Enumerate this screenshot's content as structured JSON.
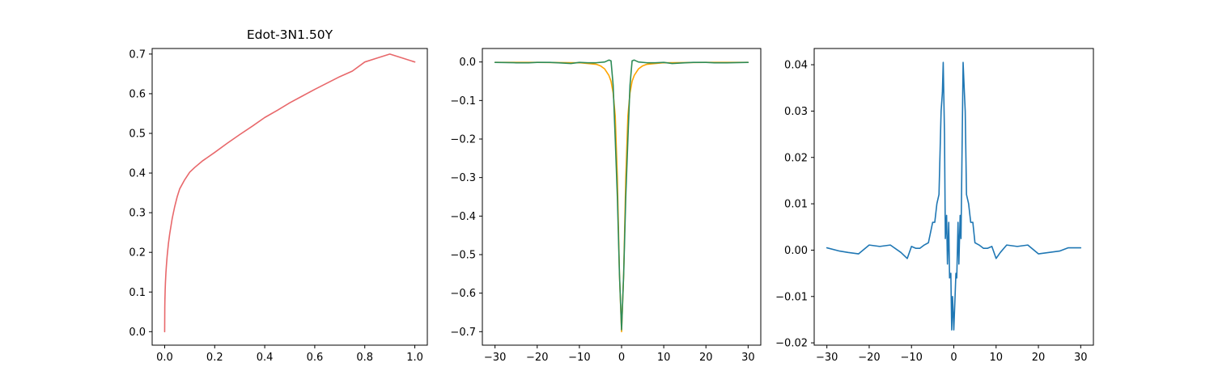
{
  "chart_data": [
    {
      "type": "line",
      "title": "Edot-3N1.50Y",
      "xlabel": "",
      "ylabel": "",
      "xlim": [
        -0.05,
        1.05
      ],
      "ylim": [
        -0.034,
        0.714
      ],
      "xticks": [
        0.0,
        0.2,
        0.4,
        0.6,
        0.8,
        1.0
      ],
      "xtick_labels": [
        "0.0",
        "0.2",
        "0.4",
        "0.6",
        "0.8",
        "1.0"
      ],
      "yticks": [
        0.0,
        0.1,
        0.2,
        0.3,
        0.4,
        0.5,
        0.6,
        0.7
      ],
      "ytick_labels": [
        "0.0",
        "0.1",
        "0.2",
        "0.3",
        "0.4",
        "0.5",
        "0.6",
        "0.7"
      ],
      "grid": false,
      "series": [
        {
          "color": "#e8686b",
          "x": [
            0,
            0.0005,
            0.001,
            0.002,
            0.003,
            0.005,
            0.007,
            0.01,
            0.015,
            0.02,
            0.03,
            0.04,
            0.05,
            0.06,
            0.08,
            0.1,
            0.12,
            0.15,
            0.2,
            0.25,
            0.3,
            0.35,
            0.4,
            0.45,
            0.5,
            0.55,
            0.6,
            0.65,
            0.7,
            0.75,
            0.8,
            0.85,
            0.9,
            0.95,
            1.0
          ],
          "y": [
            0,
            0.061,
            0.08,
            0.104,
            0.122,
            0.148,
            0.167,
            0.191,
            0.222,
            0.246,
            0.285,
            0.315,
            0.34,
            0.36,
            0.383,
            0.402,
            0.414,
            0.43,
            0.452,
            0.475,
            0.497,
            0.518,
            0.54,
            0.558,
            0.577,
            0.594,
            0.611,
            0.627,
            0.643,
            0.657,
            0.68,
            0.69,
            0.7,
            0.69,
            0.68
          ]
        }
      ]
    },
    {
      "type": "line",
      "title": "",
      "xlabel": "",
      "ylabel": "",
      "xlim": [
        -33,
        33
      ],
      "ylim": [
        -0.735,
        0.035
      ],
      "xticks": [
        -30,
        -20,
        -10,
        0,
        10,
        20,
        30
      ],
      "xtick_labels": [
        "−30",
        "−20",
        "−10",
        "0",
        "10",
        "20",
        "30"
      ],
      "yticks": [
        0.0,
        -0.1,
        -0.2,
        -0.3,
        -0.4,
        -0.5,
        -0.6,
        -0.7
      ],
      "ytick_labels": [
        "0.0",
        "−0.1",
        "−0.2",
        "−0.3",
        "−0.4",
        "−0.5",
        "−0.6",
        "−0.7"
      ],
      "grid": false,
      "series": [
        {
          "color": "#ffa500",
          "x": [
            -30,
            -20,
            -10,
            -6,
            -5,
            -4,
            -3,
            -2.5,
            -2,
            -1.5,
            -1,
            -0.5,
            0,
            0.5,
            1,
            1.5,
            2,
            2.5,
            3,
            4,
            5,
            6,
            10,
            20,
            30
          ],
          "y": [
            -0.001,
            -0.001,
            -0.002,
            -0.006,
            -0.01,
            -0.018,
            -0.035,
            -0.05,
            -0.08,
            -0.14,
            -0.3,
            -0.55,
            -0.7,
            -0.55,
            -0.3,
            -0.14,
            -0.08,
            -0.05,
            -0.035,
            -0.018,
            -0.01,
            -0.006,
            -0.002,
            -0.001,
            -0.001
          ]
        },
        {
          "color": "#2e8b57",
          "x": [
            -30,
            -25,
            -22,
            -20,
            -17,
            -15,
            -12,
            -10,
            -8,
            -6,
            -4,
            -3,
            -2.5,
            -2,
            -1.5,
            -1,
            -0.5,
            0,
            0.5,
            1,
            1.5,
            2,
            2.5,
            3,
            4,
            6,
            8,
            10,
            12,
            15,
            17,
            20,
            22,
            25,
            30
          ],
          "y": [
            -0.001,
            -0.002,
            -0.002,
            -0.001,
            -0.001,
            -0.002,
            -0.004,
            -0.001,
            -0.002,
            -0.002,
            0.0,
            0.005,
            0.003,
            -0.06,
            -0.2,
            -0.35,
            -0.55,
            -0.695,
            -0.55,
            -0.35,
            -0.2,
            -0.06,
            0.003,
            0.005,
            0.0,
            -0.002,
            -0.002,
            -0.001,
            -0.004,
            -0.002,
            -0.001,
            -0.001,
            -0.002,
            -0.002,
            -0.001
          ]
        }
      ]
    },
    {
      "type": "line",
      "title": "",
      "xlabel": "",
      "ylabel": "",
      "xlim": [
        -33,
        33
      ],
      "ylim": [
        -0.0205,
        0.0435
      ],
      "xticks": [
        -30,
        -20,
        -10,
        0,
        10,
        20,
        30
      ],
      "xtick_labels": [
        "−30",
        "−20",
        "−10",
        "0",
        "10",
        "20",
        "30"
      ],
      "yticks": [
        0.04,
        0.03,
        0.02,
        0.01,
        0.0,
        -0.01,
        -0.02
      ],
      "ytick_labels": [
        "0.04",
        "0.03",
        "0.02",
        "0.01",
        "0.00",
        "−0.01",
        "−0.02"
      ],
      "grid": false,
      "series": [
        {
          "color": "#1f77b4",
          "x": [
            -30,
            -27,
            -25,
            -22.5,
            -20,
            -17.5,
            -15,
            -12.5,
            -11,
            -10,
            -9,
            -8,
            -7,
            -6,
            -5,
            -4.5,
            -4,
            -3.5,
            -3,
            -2.7,
            -2.5,
            -2.2,
            -2,
            -1.7,
            -1.5,
            -1.2,
            -1,
            -0.7,
            -0.5,
            -0.3,
            0,
            0.3,
            0.5,
            0.7,
            1,
            1.2,
            1.5,
            1.7,
            2,
            2.2,
            2.5,
            2.7,
            3,
            3.5,
            4,
            4.5,
            5,
            6,
            7,
            8,
            9,
            10,
            11,
            12.5,
            15,
            17.5,
            20,
            22.5,
            25,
            27,
            30
          ],
          "y": [
            0.0005,
            -0.0002,
            -0.0005,
            -0.0008,
            0.0011,
            0.0008,
            0.0011,
            -0.0005,
            -0.0018,
            0.0008,
            0.0004,
            0.0004,
            0.0011,
            0.0016,
            0.006,
            0.006,
            0.01,
            0.012,
            0.03,
            0.034,
            0.0405,
            0.025,
            0.0025,
            0.0075,
            -0.003,
            0.006,
            -0.006,
            -0.005,
            -0.0172,
            -0.01,
            -0.0172,
            -0.01,
            -0.005,
            -0.006,
            0.006,
            -0.003,
            0.0075,
            0.0025,
            0.025,
            0.0405,
            0.034,
            0.03,
            0.012,
            0.01,
            0.006,
            0.006,
            0.0016,
            0.0011,
            0.0004,
            0.0004,
            0.0008,
            -0.0018,
            -0.0005,
            0.0011,
            0.0008,
            0.0011,
            -0.0008,
            -0.0005,
            -0.0002,
            0.0005,
            0.0005
          ]
        }
      ]
    }
  ]
}
